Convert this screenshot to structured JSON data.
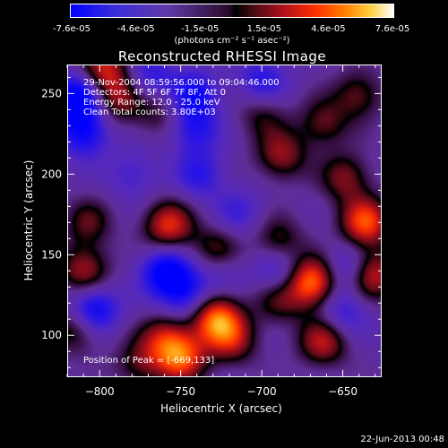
{
  "chart_data": {
    "type": "heatmap",
    "title": "Reconstructed RHESSI Image",
    "xlabel": "Heliocentric X (arcsec)",
    "ylabel": "Heliocentric Y (arcsec)",
    "xlim": [
      -820,
      -626
    ],
    "ylim": [
      74,
      268
    ],
    "x_ticks": [
      -800,
      -750,
      -700,
      -650
    ],
    "y_ticks": [
      100,
      150,
      200,
      250
    ],
    "colorbar": {
      "tick_labels": [
        "-7.6e-05",
        "-4.6e-05",
        "-1.5e-05",
        "1.5e-05",
        "4.6e-05",
        "7.6e-05"
      ],
      "units": "(photons cm⁻² s⁻¹ asec⁻²)",
      "range": [
        -7.6e-05,
        7.6e-05
      ]
    },
    "annotations": [
      "29-Nov-2004 08:59:56.000 to 09:04:46.000",
      "Detectors: 4F 5F 6F 7F 8F, Att 0",
      "Energy Range: 12.0 - 25.0 keV",
      "Clean    Total counts: 3.80E+03"
    ],
    "peak_label": "Position of Peak = [-669,133]",
    "peak_position": [
      -669,
      133
    ],
    "bright_sources": [
      {
        "x": -798,
        "y": 266,
        "v": 0.65
      },
      {
        "x": -790,
        "y": 248,
        "v": 0.55
      },
      {
        "x": -765,
        "y": 240,
        "v": 0.35
      },
      {
        "x": -758,
        "y": 168,
        "v": 0.75
      },
      {
        "x": -728,
        "y": 152,
        "v": 0.55
      },
      {
        "x": -690,
        "y": 158,
        "v": 0.45
      },
      {
        "x": -688,
        "y": 212,
        "v": 0.55
      },
      {
        "x": -662,
        "y": 232,
        "v": 0.45
      },
      {
        "x": -648,
        "y": 198,
        "v": 0.5
      },
      {
        "x": -636,
        "y": 170,
        "v": 0.85
      },
      {
        "x": -669,
        "y": 133,
        "v": 1.0
      },
      {
        "x": -632,
        "y": 138,
        "v": 0.75
      },
      {
        "x": -728,
        "y": 110,
        "v": 0.95
      },
      {
        "x": -718,
        "y": 96,
        "v": 0.5
      },
      {
        "x": -750,
        "y": 86,
        "v": 0.8
      },
      {
        "x": -760,
        "y": 98,
        "v": 0.55
      },
      {
        "x": -662,
        "y": 96,
        "v": 0.65
      },
      {
        "x": -690,
        "y": 122,
        "v": 0.4
      },
      {
        "x": -810,
        "y": 140,
        "v": 0.6
      },
      {
        "x": -808,
        "y": 170,
        "v": 0.4
      },
      {
        "x": -815,
        "y": 104,
        "v": 0.5
      },
      {
        "x": -776,
        "y": 82,
        "v": 0.4
      },
      {
        "x": -640,
        "y": 250,
        "v": 0.45
      },
      {
        "x": -700,
        "y": 238,
        "v": 0.35
      }
    ],
    "dark_sources": [
      {
        "x": -814,
        "y": 248,
        "v": -0.85
      },
      {
        "x": -810,
        "y": 226,
        "v": -0.6
      },
      {
        "x": -770,
        "y": 260,
        "v": -0.45
      },
      {
        "x": -742,
        "y": 250,
        "v": -0.55
      },
      {
        "x": -742,
        "y": 228,
        "v": -0.45
      },
      {
        "x": -738,
        "y": 200,
        "v": -0.4
      },
      {
        "x": -700,
        "y": 258,
        "v": -0.45
      },
      {
        "x": -760,
        "y": 140,
        "v": -0.7
      },
      {
        "x": -748,
        "y": 126,
        "v": -0.55
      },
      {
        "x": -726,
        "y": 142,
        "v": -0.35
      },
      {
        "x": -805,
        "y": 116,
        "v": -0.75
      },
      {
        "x": -690,
        "y": 140,
        "v": -0.45
      },
      {
        "x": -714,
        "y": 176,
        "v": -0.3
      },
      {
        "x": -646,
        "y": 142,
        "v": -0.45
      },
      {
        "x": -650,
        "y": 114,
        "v": -0.4
      },
      {
        "x": -780,
        "y": 200,
        "v": -0.3
      }
    ]
  },
  "footer": {
    "timestamp": "22-Jun-2013 00:48"
  },
  "colors": {
    "background": "#000000",
    "text": "#ffffff"
  }
}
